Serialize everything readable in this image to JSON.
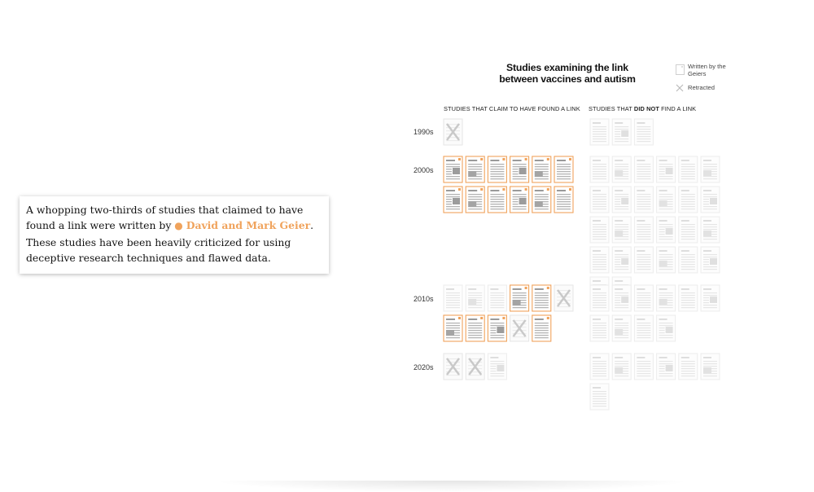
{
  "callout": {
    "before": "A whopping two-thirds of studies that claimed to have found a link were written by ",
    "dot": "●",
    "highlight": "David and Mark Geier",
    "after": ". These studies have been heavily criticized for using deceptive research techniques and flawed data."
  },
  "chart_data": {
    "type": "table",
    "title_line1": "Studies examining the link",
    "title_line2": "between vaccines and autism",
    "legend": [
      {
        "label": "Written by the Geiers",
        "icon": "study-page-icon"
      },
      {
        "label": "Retracted",
        "icon": "x-mark-icon"
      }
    ],
    "columns": [
      {
        "key": "found",
        "heading_pre": "STUDIES THAT CLAIM TO HAVE FOUND A LINK",
        "heading_bold": "",
        "heading_post": ""
      },
      {
        "key": "not_found",
        "heading_pre": "STUDIES THAT ",
        "heading_bold": "DID NOT",
        "heading_post": " FIND A LINK"
      }
    ],
    "decades": [
      {
        "label": "1990s",
        "found": [
          "retracted"
        ],
        "not_found": 3
      },
      {
        "label": "2000s",
        "found": [
          "geier",
          "geier",
          "geier",
          "geier",
          "geier",
          "geier",
          "geier",
          "geier",
          "geier",
          "geier",
          "geier",
          "geier"
        ],
        "not_found": 26
      },
      {
        "label": "2010s",
        "found": [
          "other",
          "other",
          "other",
          "geier",
          "geier",
          "retracted",
          "geier",
          "geier",
          "geier",
          "retracted",
          "geier"
        ],
        "not_found": 10
      },
      {
        "label": "2020s",
        "found": [
          "retracted",
          "retracted",
          "other"
        ],
        "not_found": 7
      }
    ],
    "colors": {
      "geier": "#f0a35c",
      "other": "#d8d8d8",
      "accent_text": "#f0a35c"
    }
  }
}
